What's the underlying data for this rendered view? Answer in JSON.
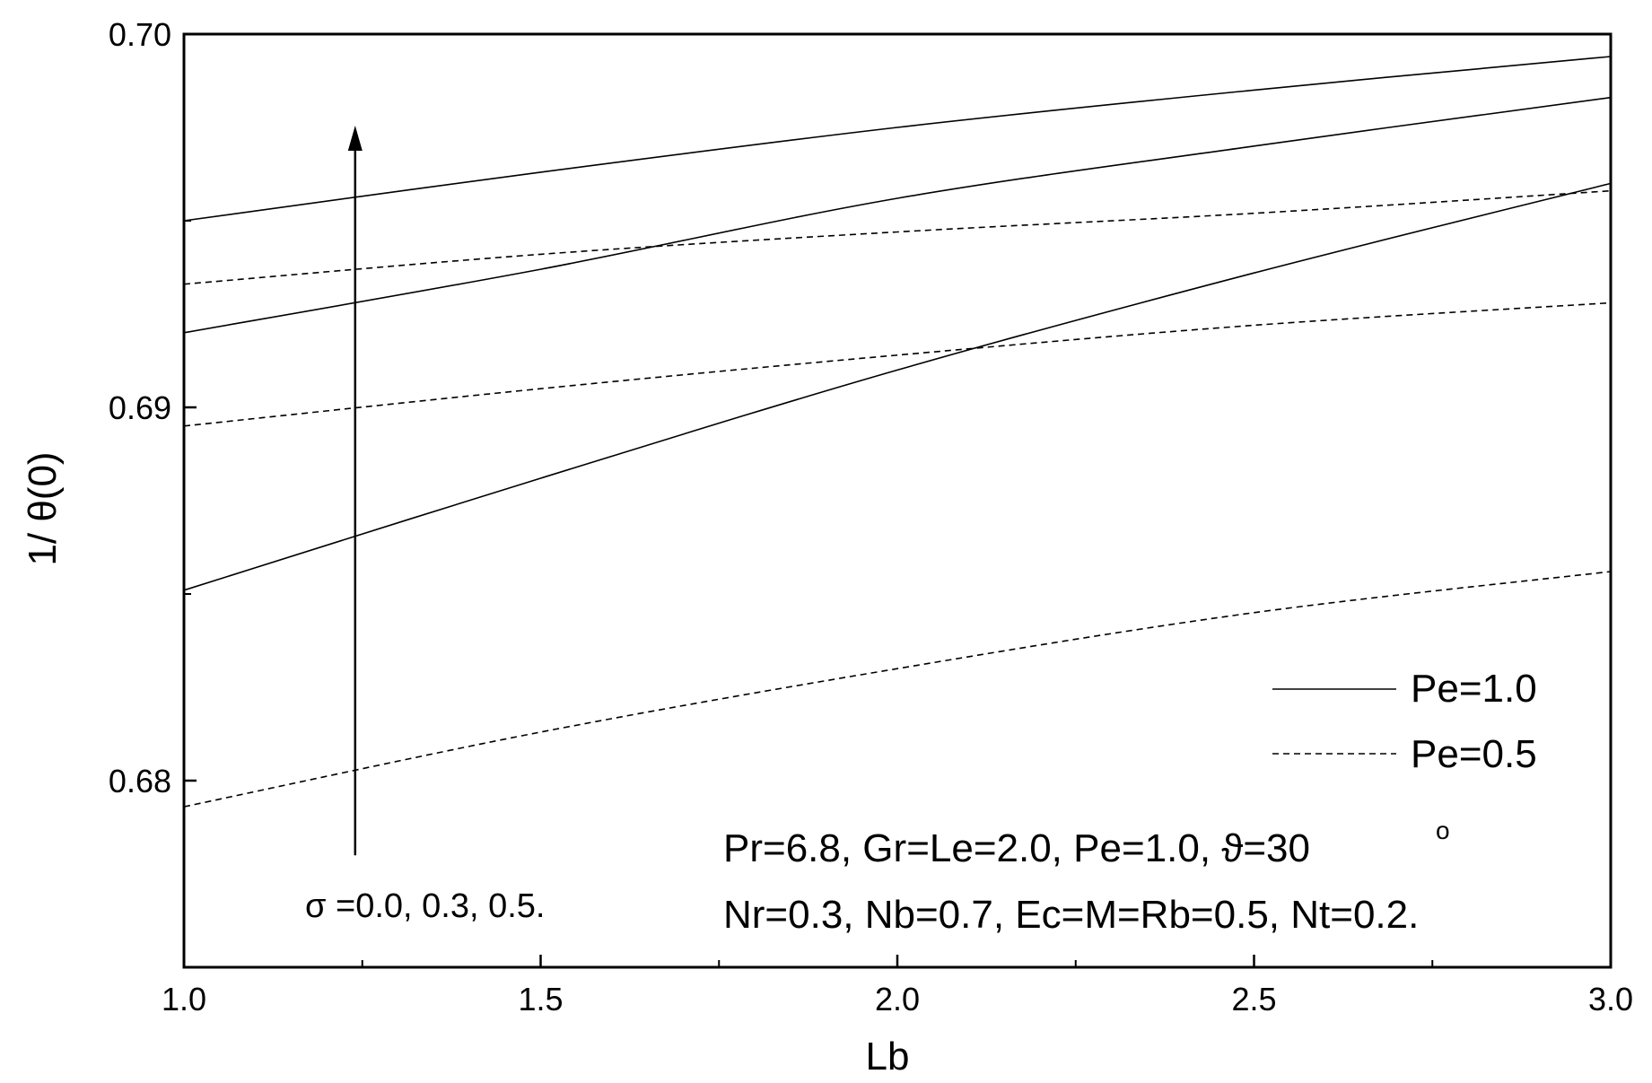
{
  "chart_data": {
    "type": "line",
    "title": "",
    "xlabel": "Lb",
    "ylabel": "1/ θ(0)",
    "xlim": [
      1.0,
      3.0
    ],
    "ylim": [
      0.675,
      0.7
    ],
    "x_ticks": [
      "1.0",
      "1.5",
      "2.0",
      "2.5",
      "3.0"
    ],
    "y_ticks": [
      "0.68",
      "0.69",
      "0.70"
    ],
    "grid": false,
    "legend_position": "lower-right",
    "legend": [
      {
        "label": "Pe=1.0",
        "style": "solid"
      },
      {
        "label": "Pe=0.5",
        "style": "dashed"
      }
    ],
    "series": [
      {
        "group": "Pe=1.0",
        "sigma": "0.0",
        "style": "solid",
        "x": [
          1.0,
          1.5,
          2.0,
          2.5,
          3.0
        ],
        "y": [
          0.6851,
          0.6881,
          0.691,
          0.6936,
          0.696
        ]
      },
      {
        "group": "Pe=1.0",
        "sigma": "0.3",
        "style": "solid",
        "x": [
          1.0,
          1.5,
          2.0,
          2.5,
          3.0
        ],
        "y": [
          0.692,
          0.6937,
          0.6956,
          0.697,
          0.6983
        ]
      },
      {
        "group": "Pe=1.0",
        "sigma": "0.5",
        "style": "solid",
        "x": [
          1.0,
          1.5,
          2.0,
          2.5,
          3.0
        ],
        "y": [
          0.695,
          0.6963,
          0.6975,
          0.6985,
          0.6994
        ]
      },
      {
        "group": "Pe=0.5",
        "sigma": "0.0",
        "style": "dashed",
        "x": [
          1.0,
          1.5,
          2.0,
          2.5,
          3.0
        ],
        "y": [
          0.6793,
          0.6813,
          0.683,
          0.6845,
          0.6856
        ]
      },
      {
        "group": "Pe=0.5",
        "sigma": "0.3",
        "style": "dashed",
        "x": [
          1.0,
          1.5,
          2.0,
          2.5,
          3.0
        ],
        "y": [
          0.6895,
          0.6905,
          0.6914,
          0.6922,
          0.6928
        ]
      },
      {
        "group": "Pe=0.5",
        "sigma": "0.5",
        "style": "dashed",
        "x": [
          1.0,
          1.5,
          2.0,
          2.5,
          3.0
        ],
        "y": [
          0.6933,
          0.6941,
          0.6947,
          0.6952,
          0.6958
        ]
      }
    ],
    "arrow": {
      "x": 1.24,
      "y_from": 0.678,
      "y_to": 0.6975,
      "label": "σ =0.0, 0.3, 0.5."
    },
    "annotations": [
      "Pr=6.8, Gr=Le=2.0, Pe=1.0, ϑ=30",
      "o",
      "Nr=0.3, Nb=0.7, Ec=M=Rb=0.5, Nt=0.2."
    ]
  }
}
